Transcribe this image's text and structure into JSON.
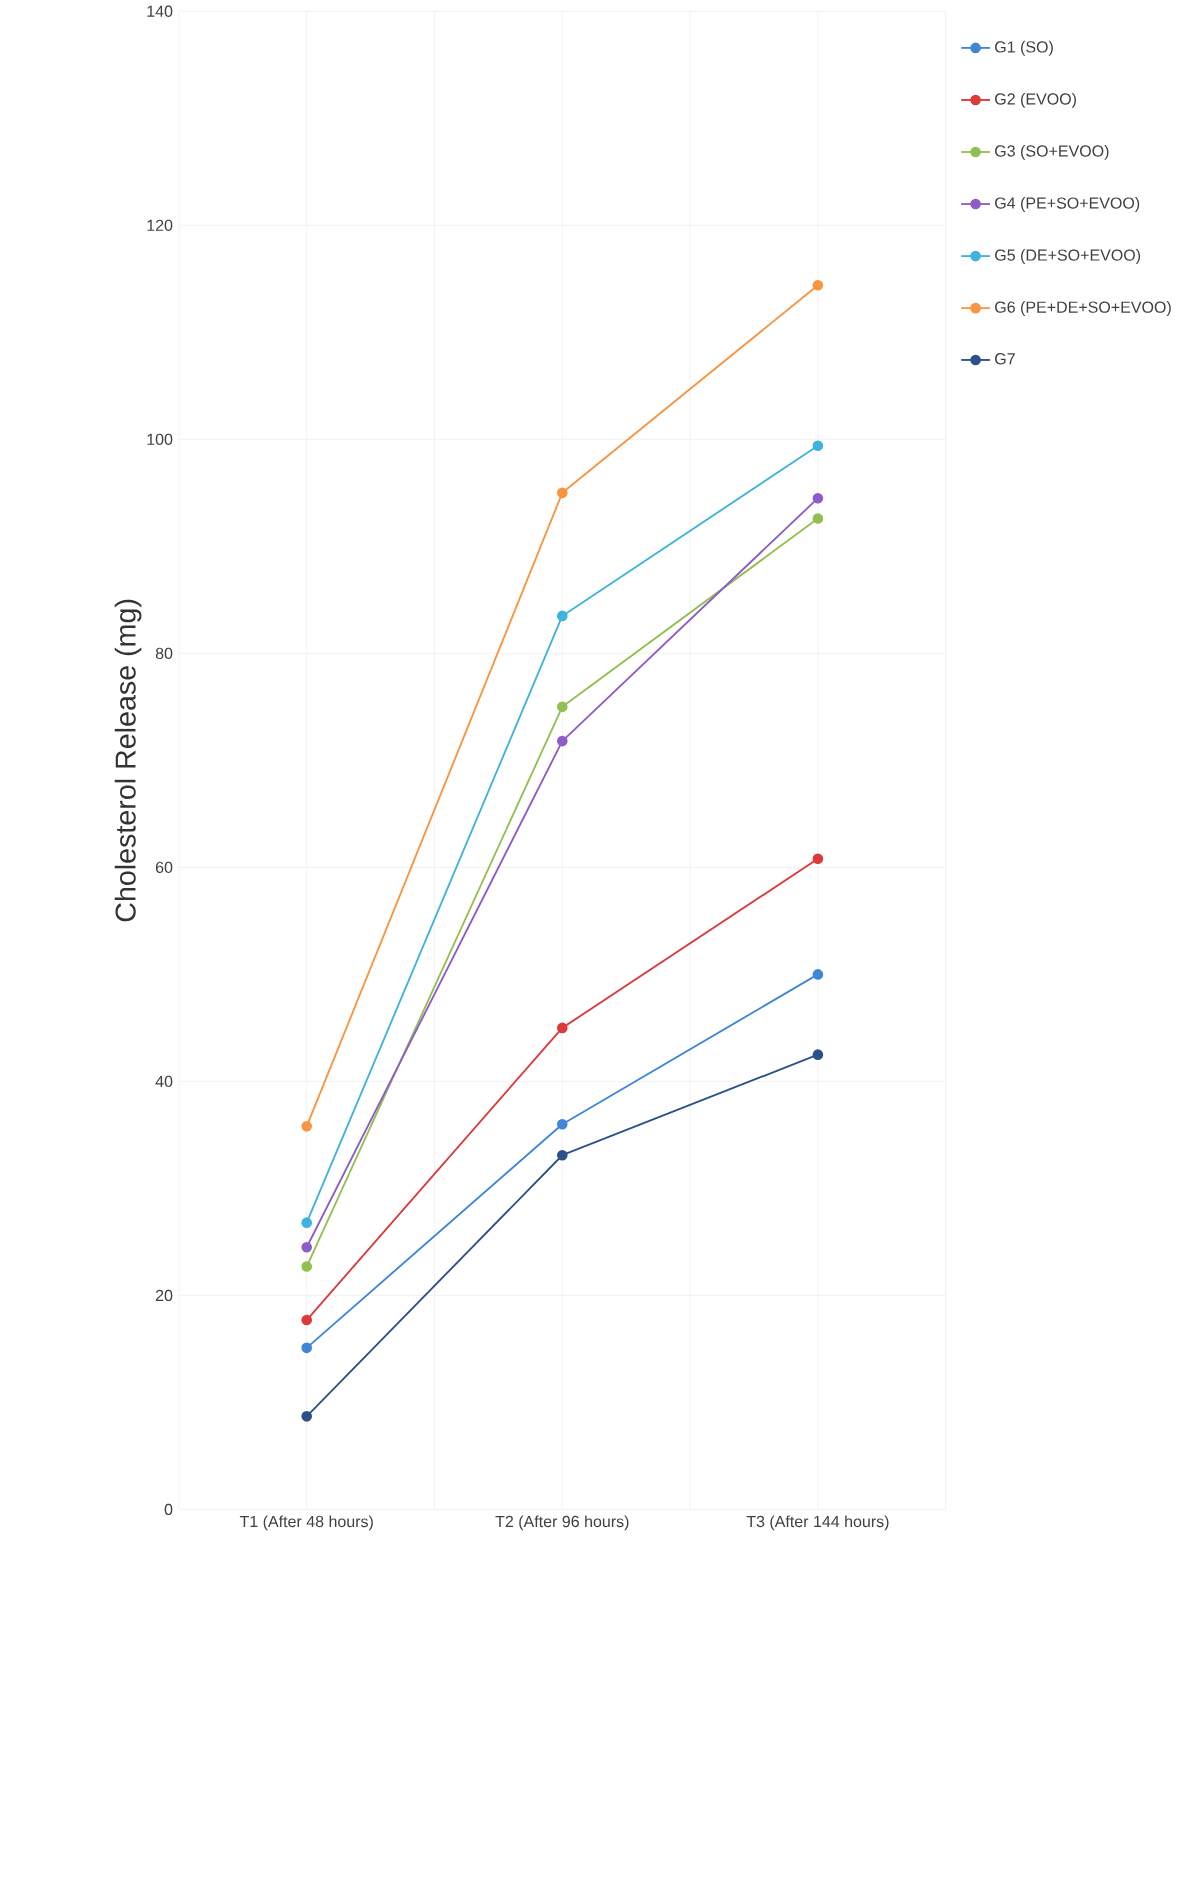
{
  "chart_data": {
    "type": "line",
    "ylabel": "Cholesterol Release (mg)",
    "categories": [
      "T1 (After 48 hours)",
      "T2 (After 96 hours)",
      "T3 (After 144 hours)"
    ],
    "series": [
      {
        "name": "G1 (SO)",
        "color": "#3f86d6",
        "values": [
          15.1,
          36.0,
          50.0
        ]
      },
      {
        "name": "G2 (EVOO)",
        "color": "#dc3a3a",
        "values": [
          17.7,
          45.0,
          60.8
        ]
      },
      {
        "name": "G3 (SO+EVOO)",
        "color": "#92c050",
        "values": [
          22.7,
          75.0,
          92.6
        ]
      },
      {
        "name": "G4 (PE+SO+EVOO)",
        "color": "#8e5cc8",
        "values": [
          24.5,
          71.8,
          94.5
        ]
      },
      {
        "name": "G5 (DE+SO+EVOO)",
        "color": "#3fb2de",
        "values": [
          26.8,
          83.5,
          99.4
        ]
      },
      {
        "name": "G6 (PE+DE+SO+EVOO)",
        "color": "#f79540",
        "values": [
          35.8,
          95.0,
          114.4
        ]
      },
      {
        "name": "G7",
        "color": "#2b5189",
        "values": [
          8.7,
          33.1,
          42.5
        ]
      }
    ],
    "ylim": [
      0,
      140
    ],
    "yticks": [
      0,
      20,
      40,
      60,
      80,
      100,
      120,
      140
    ],
    "grid": true,
    "legend": "right",
    "marker": "circle",
    "line_style": "solid"
  }
}
